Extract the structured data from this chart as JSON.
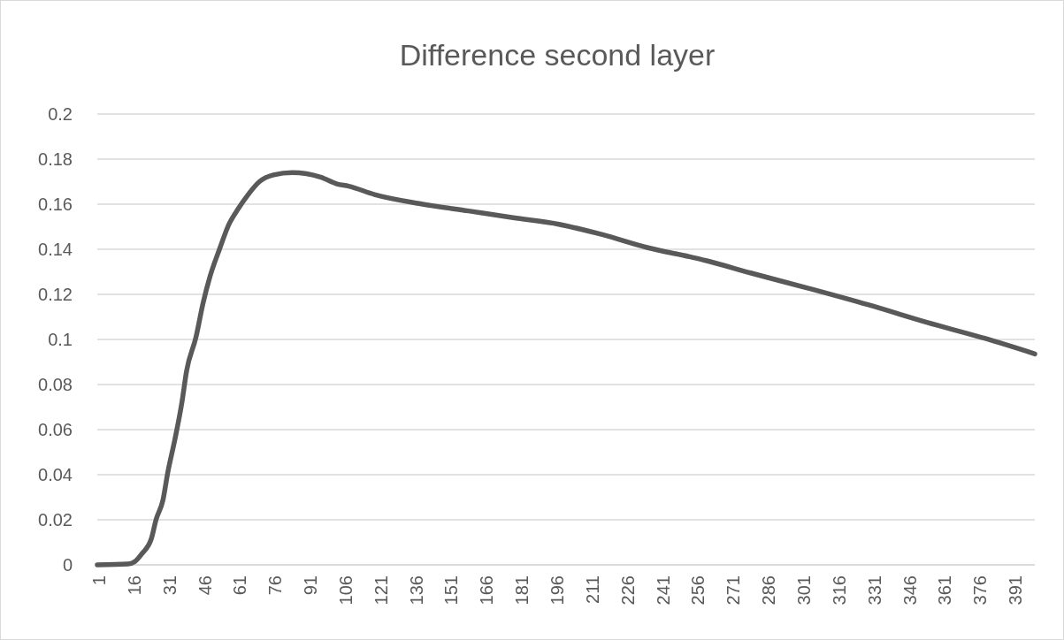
{
  "chart_data": {
    "type": "line",
    "title": "Difference second layer",
    "series": [
      {
        "color": "#595959",
        "x": [
          1,
          14,
          17,
          20,
          24,
          26,
          29,
          31,
          34,
          37,
          39,
          43,
          46,
          49,
          53,
          57,
          61,
          65,
          70,
          76,
          84,
          96,
          103,
          108,
          119,
          138,
          159,
          178,
          197,
          216,
          235,
          253,
          260,
          279,
          304,
          329,
          354,
          379,
          400
        ],
        "values": [
          0,
          0.0004,
          0.0015,
          0.005,
          0.0116,
          0.02,
          0.029,
          0.041,
          0.0555,
          0.072,
          0.086,
          0.101,
          0.116,
          0.128,
          0.14,
          0.151,
          0.158,
          0.164,
          0.17,
          0.173,
          0.174,
          0.172,
          0.169,
          0.168,
          0.1643,
          0.1603,
          0.157,
          0.154,
          0.1512,
          0.1465,
          0.1408,
          0.1367,
          0.135,
          0.1295,
          0.1226,
          0.1154,
          0.1076,
          0.1004,
          0.0936
        ]
      }
    ],
    "xlim": [
      1,
      400
    ],
    "xticks": [
      1,
      16,
      31,
      46,
      61,
      76,
      91,
      106,
      121,
      136,
      151,
      166,
      181,
      196,
      211,
      226,
      241,
      256,
      271,
      286,
      301,
      316,
      331,
      346,
      361,
      376,
      391
    ],
    "ylim": [
      0,
      0.2
    ],
    "yticks": [
      0,
      0.02,
      0.04,
      0.06,
      0.08,
      0.1,
      0.12,
      0.14,
      0.16,
      0.18,
      0.2
    ],
    "grid": "y",
    "marker": "none",
    "line_style": "solid"
  }
}
